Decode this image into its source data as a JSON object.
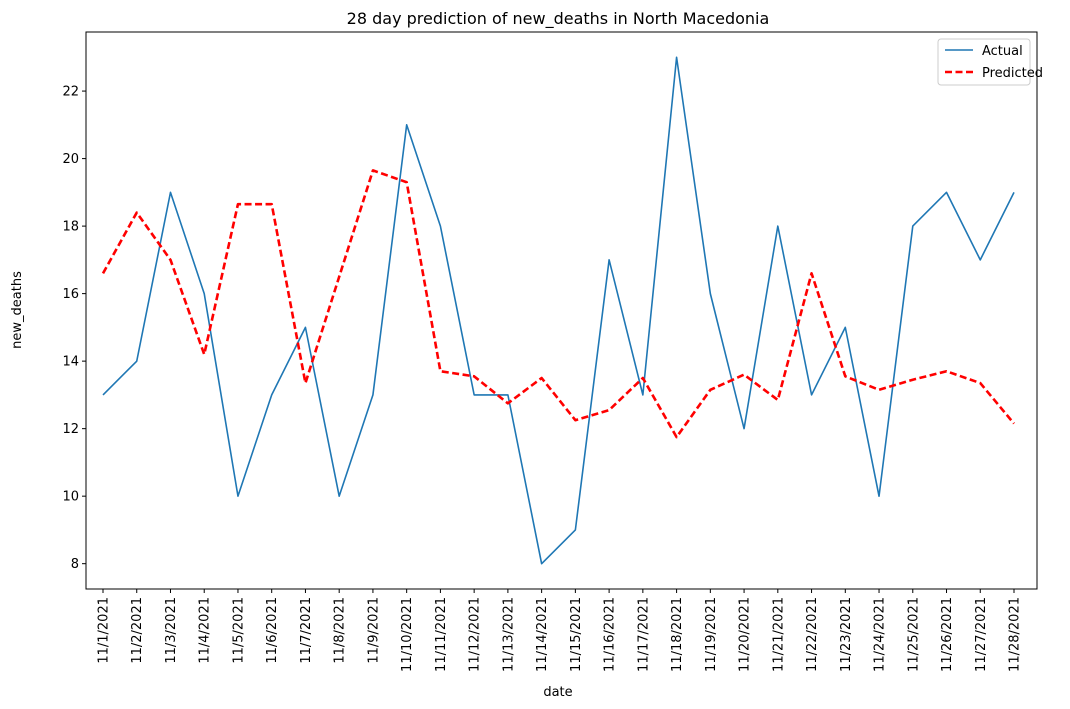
{
  "chart_data": {
    "type": "line",
    "title": "28 day prediction of new_deaths in North Macedonia",
    "xlabel": "date",
    "ylabel": "new_deaths",
    "x": [
      "11/1/2021",
      "11/2/2021",
      "11/3/2021",
      "11/4/2021",
      "11/5/2021",
      "11/6/2021",
      "11/7/2021",
      "11/8/2021",
      "11/9/2021",
      "11/10/2021",
      "11/11/2021",
      "11/12/2021",
      "11/13/2021",
      "11/14/2021",
      "11/15/2021",
      "11/16/2021",
      "11/17/2021",
      "11/18/2021",
      "11/19/2021",
      "11/20/2021",
      "11/21/2021",
      "11/22/2021",
      "11/23/2021",
      "11/24/2021",
      "11/25/2021",
      "11/26/2021",
      "11/27/2021",
      "11/28/2021"
    ],
    "ylim": [
      7.25,
      23.75
    ],
    "yticks": [
      8,
      10,
      12,
      14,
      16,
      18,
      20,
      22
    ],
    "legend_position": "top-right",
    "grid": false,
    "series": [
      {
        "name": "Actual",
        "color": "#1f77b4",
        "style": "solid",
        "values": [
          13,
          14,
          19,
          16,
          10,
          13,
          15,
          10,
          13,
          21,
          18,
          13,
          13,
          8,
          9,
          17,
          13,
          23,
          16,
          12,
          18,
          13,
          15,
          10,
          18,
          19,
          17,
          19
        ]
      },
      {
        "name": "Predicted",
        "color": "#ff0000",
        "style": "dashed",
        "values": [
          16.6,
          18.4,
          17.0,
          14.2,
          18.65,
          18.65,
          13.35,
          16.5,
          19.65,
          19.3,
          13.7,
          13.55,
          12.75,
          13.5,
          12.25,
          12.55,
          13.5,
          11.75,
          13.15,
          13.6,
          12.85,
          16.6,
          13.55,
          13.15,
          13.45,
          13.7,
          13.35,
          12.15
        ]
      }
    ]
  }
}
